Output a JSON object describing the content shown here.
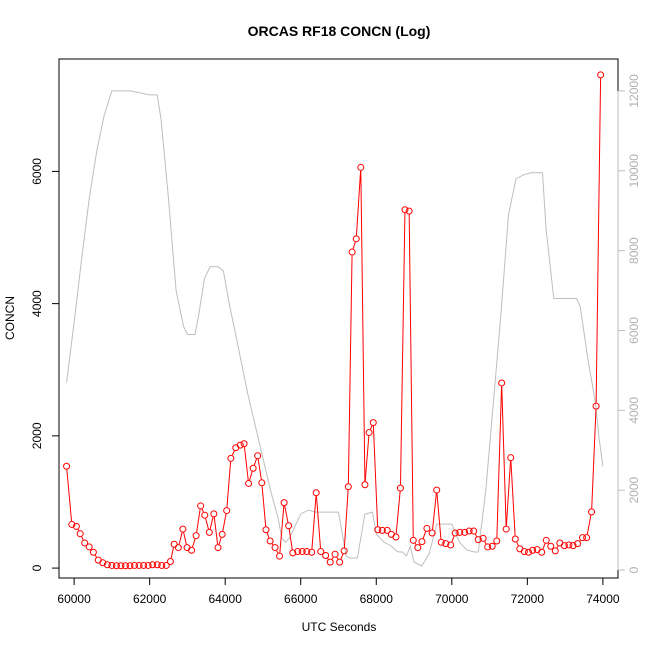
{
  "chart_data": {
    "type": "line",
    "title": "ORCAS RF18 CONCN (Log)",
    "xlabel": "UTC Seconds",
    "ylabel": "CONCN",
    "xlim": [
      59600,
      74400
    ],
    "ylim": [
      -150,
      7700
    ],
    "y2lim": [
      -200,
      12800
    ],
    "x_ticks": [
      60000,
      62000,
      64000,
      66000,
      68000,
      70000,
      72000,
      74000
    ],
    "y_ticks": [
      0,
      2000,
      4000,
      6000
    ],
    "y2_ticks": [
      0,
      2000,
      4000,
      6000,
      8000,
      10000,
      12000
    ],
    "colors": {
      "concn": "#ff0000",
      "altitude": "#bebebe"
    },
    "series": [
      {
        "key": "concn",
        "style": "line-points",
        "x": [
          59800,
          59940,
          60060,
          60160,
          60280,
          60400,
          60510,
          60640,
          60760,
          60880,
          61000,
          61120,
          61240,
          61360,
          61480,
          61600,
          61720,
          61840,
          61960,
          62080,
          62200,
          62320,
          62440,
          62550,
          62650,
          62760,
          62880,
          62990,
          63110,
          63230,
          63350,
          63460,
          63580,
          63700,
          63810,
          63920,
          64040,
          64150,
          64280,
          64400,
          64500,
          64620,
          64740,
          64860,
          64970,
          65080,
          65190,
          65320,
          65440,
          65560,
          65680,
          65790,
          65920,
          66040,
          66160,
          66290,
          66410,
          66530,
          66660,
          66780,
          66910,
          67030,
          67150,
          67260,
          67360,
          67470,
          67590,
          67700,
          67810,
          67920,
          68040,
          68160,
          68290,
          68400,
          68520,
          68640,
          68760,
          68870,
          68980,
          69100,
          69210,
          69340,
          69480,
          69600,
          69720,
          69840,
          69970,
          70090,
          70210,
          70340,
          70460,
          70580,
          70700,
          70830,
          70950,
          71070,
          71190,
          71320,
          71440,
          71560,
          71680,
          71800,
          71920,
          72030,
          72140,
          72260,
          72380,
          72500,
          72620,
          72740,
          72860,
          72980,
          73100,
          73210,
          73330,
          73460,
          73570,
          73700,
          73820,
          73940
        ],
        "y": [
          1540,
          660,
          630,
          520,
          380,
          320,
          240,
          120,
          80,
          50,
          40,
          35,
          35,
          35,
          35,
          40,
          40,
          40,
          40,
          50,
          50,
          40,
          40,
          100,
          360,
          310,
          590,
          310,
          270,
          490,
          940,
          800,
          540,
          820,
          310,
          510,
          870,
          1660,
          1820,
          1860,
          1880,
          1280,
          1510,
          1700,
          1290,
          580,
          410,
          310,
          180,
          990,
          640,
          230,
          250,
          250,
          250,
          240,
          1140,
          250,
          190,
          90,
          210,
          90,
          260,
          1230,
          4780,
          4980,
          6060,
          1260,
          2050,
          2200,
          580,
          570,
          570,
          510,
          470,
          1210,
          5420,
          5400,
          420,
          310,
          400,
          600,
          530,
          1180,
          390,
          370,
          350,
          530,
          540,
          540,
          560,
          560,
          430,
          450,
          320,
          330,
          410,
          2800,
          590,
          1670,
          440,
          290,
          250,
          240,
          270,
          280,
          240,
          420,
          330,
          260,
          380,
          340,
          350,
          340,
          370,
          460,
          460,
          850,
          2450,
          7460
        ]
      },
      {
        "key": "altitude",
        "style": "line",
        "axis": "right",
        "x": [
          59800,
          60000,
          60200,
          60400,
          60600,
          60800,
          61000,
          61500,
          62000,
          62200,
          62300,
          62500,
          62700,
          62900,
          63000,
          63200,
          63300,
          63450,
          63600,
          63800,
          63950,
          64100,
          64300,
          64600,
          64900,
          65200,
          65400,
          65500,
          65600,
          65700,
          65800,
          66000,
          66200,
          66400,
          66500,
          66600,
          66800,
          67000,
          67200,
          67300,
          67500,
          67700,
          67900,
          68000,
          68200,
          68400,
          68500,
          68600,
          68700,
          68800,
          68900,
          69000,
          69200,
          69400,
          69600,
          69800,
          70000,
          70200,
          70400,
          70600,
          70700,
          70900,
          71100,
          71300,
          71500,
          71700,
          71900,
          72100,
          72400,
          72500,
          72700,
          72900,
          73100,
          73300,
          73400,
          73600,
          73800,
          73900,
          74000
        ],
        "y": [
          4700,
          6200,
          7800,
          9300,
          10500,
          11400,
          12000,
          12000,
          11900,
          11900,
          11300,
          9300,
          7000,
          6100,
          5900,
          5900,
          6400,
          7300,
          7600,
          7600,
          7500,
          6700,
          5800,
          4400,
          3200,
          2000,
          1300,
          800,
          700,
          800,
          1000,
          1400,
          1500,
          1450,
          1450,
          1450,
          1450,
          1450,
          350,
          300,
          300,
          1400,
          1450,
          900,
          700,
          600,
          500,
          450,
          450,
          350,
          600,
          200,
          100,
          400,
          1150,
          1150,
          1150,
          700,
          500,
          450,
          450,
          2000,
          4200,
          6400,
          8900,
          9800,
          9900,
          9950,
          9950,
          8500,
          6800,
          6800,
          6800,
          6800,
          6600,
          5300,
          4200,
          3300,
          2600
        ]
      }
    ]
  }
}
